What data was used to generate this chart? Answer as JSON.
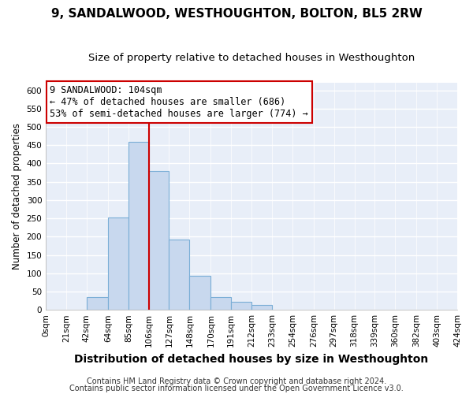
{
  "title": "9, SANDALWOOD, WESTHOUGHTON, BOLTON, BL5 2RW",
  "subtitle": "Size of property relative to detached houses in Westhoughton",
  "xlabel": "Distribution of detached houses by size in Westhoughton",
  "ylabel": "Number of detached properties",
  "bin_edges": [
    0,
    21,
    42,
    64,
    85,
    106,
    127,
    148,
    170,
    191,
    212,
    233,
    254,
    276,
    297,
    318,
    339,
    360,
    382,
    403,
    424
  ],
  "bin_labels": [
    "0sqm",
    "21sqm",
    "42sqm",
    "64sqm",
    "85sqm",
    "106sqm",
    "127sqm",
    "148sqm",
    "170sqm",
    "191sqm",
    "212sqm",
    "233sqm",
    "254sqm",
    "276sqm",
    "297sqm",
    "318sqm",
    "339sqm",
    "360sqm",
    "382sqm",
    "403sqm",
    "424sqm"
  ],
  "counts": [
    0,
    0,
    35,
    253,
    460,
    380,
    192,
    93,
    35,
    22,
    13,
    0,
    0,
    0,
    0,
    0,
    0,
    0,
    0,
    0
  ],
  "bar_color": "#c8d8ee",
  "bar_edge_color": "#7aaed6",
  "vline_x": 106,
  "vline_color": "#cc0000",
  "annotation_line1": "9 SANDALWOOD: 104sqm",
  "annotation_line2": "← 47% of detached houses are smaller (686)",
  "annotation_line3": "53% of semi-detached houses are larger (774) →",
  "annotation_box_color": "#ffffff",
  "annotation_box_edge": "#cc0000",
  "ylim": [
    0,
    620
  ],
  "yticks": [
    0,
    50,
    100,
    150,
    200,
    250,
    300,
    350,
    400,
    450,
    500,
    550,
    600
  ],
  "footer1": "Contains HM Land Registry data © Crown copyright and database right 2024.",
  "footer2": "Contains public sector information licensed under the Open Government Licence v3.0.",
  "bg_color": "#ffffff",
  "plot_bg_color": "#e8eef8",
  "grid_color": "#ffffff",
  "title_fontsize": 11,
  "subtitle_fontsize": 9.5,
  "xlabel_fontsize": 10,
  "ylabel_fontsize": 8.5,
  "tick_fontsize": 7.5,
  "footer_fontsize": 7,
  "annot_fontsize": 8.5
}
